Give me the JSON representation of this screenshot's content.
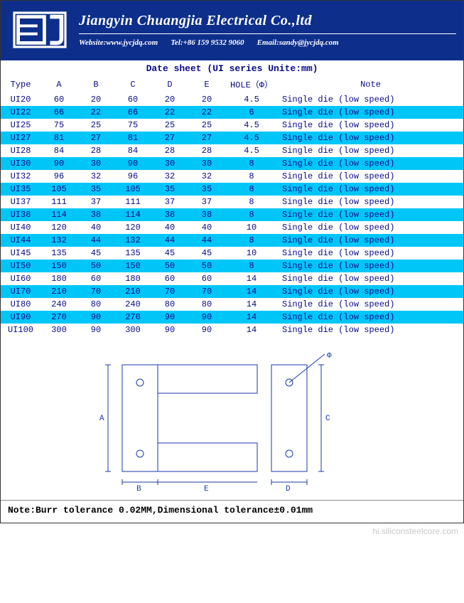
{
  "header": {
    "company": "Jiangyin Chuangjia Electrical Co.,ltd",
    "website_label": "Website:",
    "website_value": "www.jycjdq.com",
    "tel_label": "Tel:",
    "tel_value": "+86 159 9532 9060",
    "email_label": "Email:",
    "email_value": "sandy@jycjdq.com"
  },
  "sheet_title": "Date sheet   (UI series Unite:mm)",
  "columns": [
    "Type",
    "A",
    "B",
    "C",
    "D",
    "E",
    "HOLE（Φ）",
    "Note"
  ],
  "rows": [
    {
      "type": "UI20",
      "a": "60",
      "b": "20",
      "c": "60",
      "d": "20",
      "e": "20",
      "hole": "4.5",
      "note": "Single die (low speed)"
    },
    {
      "type": "UI22",
      "a": "66",
      "b": "22",
      "c": "66",
      "d": "22",
      "e": "22",
      "hole": "6",
      "note": "Single die (low speed)"
    },
    {
      "type": "UI25",
      "a": "75",
      "b": "25",
      "c": "75",
      "d": "25",
      "e": "25",
      "hole": "4.5",
      "note": "Single die (low speed)"
    },
    {
      "type": "UI27",
      "a": "81",
      "b": "27",
      "c": "81",
      "d": "27",
      "e": "27",
      "hole": "4.5",
      "note": "Single die (low speed)"
    },
    {
      "type": "UI28",
      "a": "84",
      "b": "28",
      "c": "84",
      "d": "28",
      "e": "28",
      "hole": "4.5",
      "note": "Single die (low speed)"
    },
    {
      "type": "UI30",
      "a": "90",
      "b": "30",
      "c": "90",
      "d": "30",
      "e": "30",
      "hole": "8",
      "note": "Single die (low speed)"
    },
    {
      "type": "UI32",
      "a": "96",
      "b": "32",
      "c": "96",
      "d": "32",
      "e": "32",
      "hole": "8",
      "note": "Single die (low speed)"
    },
    {
      "type": "UI35",
      "a": "105",
      "b": "35",
      "c": "105",
      "d": "35",
      "e": "35",
      "hole": "8",
      "note": "Single die (low speed)"
    },
    {
      "type": "UI37",
      "a": "111",
      "b": "37",
      "c": "111",
      "d": "37",
      "e": "37",
      "hole": "8",
      "note": "Single die (low speed)"
    },
    {
      "type": "UI38",
      "a": "114",
      "b": "38",
      "c": "114",
      "d": "38",
      "e": "38",
      "hole": "8",
      "note": "Single die (low speed)"
    },
    {
      "type": "UI40",
      "a": "120",
      "b": "40",
      "c": "120",
      "d": "40",
      "e": "40",
      "hole": "10",
      "note": "Single die (low speed)"
    },
    {
      "type": "UI44",
      "a": "132",
      "b": "44",
      "c": "132",
      "d": "44",
      "e": "44",
      "hole": "8",
      "note": "Single die (low speed)"
    },
    {
      "type": "UI45",
      "a": "135",
      "b": "45",
      "c": "135",
      "d": "45",
      "e": "45",
      "hole": "10",
      "note": "Single die (low speed)"
    },
    {
      "type": "UI50",
      "a": "150",
      "b": "50",
      "c": "150",
      "d": "50",
      "e": "50",
      "hole": "8",
      "note": "Single die (low speed)"
    },
    {
      "type": "UI60",
      "a": "180",
      "b": "60",
      "c": "180",
      "d": "60",
      "e": "60",
      "hole": "14",
      "note": "Single die (low speed)"
    },
    {
      "type": "UI70",
      "a": "210",
      "b": "70",
      "c": "210",
      "d": "70",
      "e": "70",
      "hole": "14",
      "note": "Single die (low speed)"
    },
    {
      "type": "UI80",
      "a": "240",
      "b": "80",
      "c": "240",
      "d": "80",
      "e": "80",
      "hole": "14",
      "note": "Single die (low speed)"
    },
    {
      "type": "UI90",
      "a": "270",
      "b": "90",
      "c": "270",
      "d": "90",
      "e": "90",
      "hole": "14",
      "note": "Single die (low speed)"
    },
    {
      "type": "UI100",
      "a": "300",
      "b": "90",
      "c": "300",
      "d": "90",
      "e": "90",
      "hole": "14",
      "note": "Single die (low speed)"
    }
  ],
  "row_stripe_colors": {
    "odd": "#ffffff",
    "even": "#00c6f7"
  },
  "text_color": "#0a0a8a",
  "footnote": "Note:Burr tolerance 0.02MM,Dimensional tolerance±0.01mm",
  "watermark": "hi.siliconsteelcore.com",
  "diagram": {
    "labels": {
      "A": "A",
      "B": "B",
      "C": "C",
      "D": "D",
      "E": "E",
      "PHI": "Φ"
    },
    "stroke": "#1a3aa8",
    "stroke_width": 1,
    "fill": "none"
  }
}
